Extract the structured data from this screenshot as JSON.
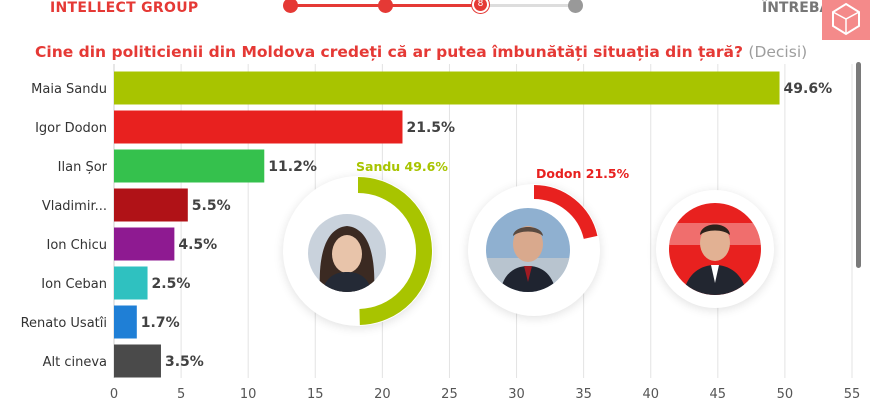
{
  "header": {
    "brand": "INTELLECT GROUP",
    "brand_right": "ÎNTREBĂRI",
    "progress_step": "8"
  },
  "title": {
    "main": "Cine din politicienii din Moldova credeți că ar putea îmbunătăți situația din țară?",
    "sub": "(Decisi)"
  },
  "chart_data": {
    "type": "bar",
    "orientation": "horizontal",
    "categories": [
      "Maia Sandu",
      "Igor Dodon",
      "Ilan Șor",
      "Vladimir...",
      "Ion Chicu",
      "Ion Ceban",
      "Renato Usatîi",
      "Alt cineva"
    ],
    "values": [
      49.6,
      21.5,
      11.2,
      5.5,
      4.5,
      2.5,
      1.7,
      3.5
    ],
    "value_labels": [
      "49.6%",
      "21.5%",
      "11.2%",
      "5.5%",
      "4.5%",
      "2.5%",
      "1.7%",
      "3.5%"
    ],
    "colors": [
      "#a8c400",
      "#e8211f",
      "#35c14d",
      "#b01217",
      "#8e1a91",
      "#2fc1c0",
      "#1f7fd6",
      "#4a4a4a"
    ],
    "xlim": [
      0,
      55
    ],
    "xticks": [
      0,
      5,
      10,
      15,
      20,
      25,
      30,
      35,
      40,
      45,
      50,
      55
    ],
    "grid": true
  },
  "highlights": [
    {
      "label": "Sandu 49.6%",
      "percent": 49.6,
      "color": "#a8c400",
      "icon": "portrait-woman"
    },
    {
      "label": "Dodon 21.5%",
      "percent": 21.5,
      "color": "#e8211f",
      "icon": "portrait-man"
    },
    {
      "label": "",
      "percent": 0,
      "color": "#e8211f",
      "icon": "portrait-man-red-background"
    }
  ]
}
